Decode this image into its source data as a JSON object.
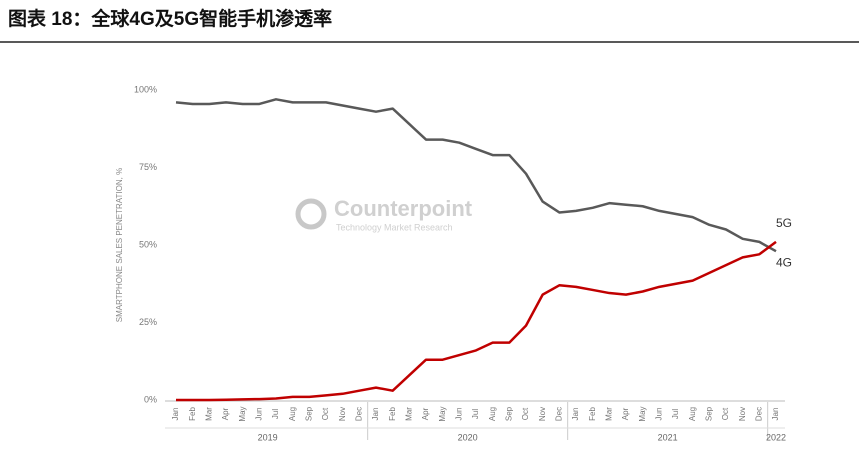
{
  "header": {
    "title": "图表 18：全球4G及5G智能手机渗透率"
  },
  "chart_data": {
    "type": "line",
    "y_label": "SMARTPHONE SALES PENETRATION, %",
    "watermark": {
      "name": "Counterpoint",
      "tagline": "Technology Market Research"
    },
    "categories": [
      "Jan",
      "Feb",
      "Mar",
      "Apr",
      "May",
      "Jun",
      "Jul",
      "Aug",
      "Sep",
      "Oct",
      "Nov",
      "Dec",
      "Jan",
      "Feb",
      "Mar",
      "Apr",
      "May",
      "Jun",
      "Jul",
      "Aug",
      "Sep",
      "Oct",
      "Nov",
      "Dec",
      "Jan",
      "Feb",
      "Mar",
      "Apr",
      "May",
      "Jun",
      "Jul",
      "Aug",
      "Sep",
      "Oct",
      "Nov",
      "Dec",
      "Jan"
    ],
    "years": [
      "2019",
      "2020",
      "2021",
      "2022"
    ],
    "series": [
      {
        "name": "4G",
        "color": "#595959",
        "values": [
          96,
          95.5,
          95.5,
          96,
          95.5,
          95.5,
          97,
          96,
          96,
          96,
          95,
          94,
          93,
          94,
          89,
          84,
          84,
          83,
          81,
          79,
          79,
          73,
          64,
          60.5,
          61,
          62,
          63.5,
          63,
          62.5,
          61,
          60,
          59,
          56.5,
          55,
          52,
          51,
          48
        ]
      },
      {
        "name": "5G",
        "color": "#c00000",
        "values": [
          0,
          0,
          0,
          0.1,
          0.2,
          0.3,
          0.5,
          1,
          1,
          1.5,
          2,
          3,
          4,
          3,
          8,
          13,
          13,
          14.5,
          16,
          18.5,
          18.5,
          24,
          34,
          37,
          36.5,
          35.5,
          34.5,
          34,
          35,
          36.5,
          37.5,
          38.5,
          41,
          43.5,
          46,
          47,
          51
        ]
      }
    ],
    "ylim": [
      0,
      100
    ],
    "yticks": [
      {
        "value": 0,
        "label": "0%"
      },
      {
        "value": 25,
        "label": "25%"
      },
      {
        "value": 50,
        "label": "50%"
      },
      {
        "value": 75,
        "label": "75%"
      },
      {
        "value": 100,
        "label": "100%"
      }
    ],
    "grid": false
  }
}
